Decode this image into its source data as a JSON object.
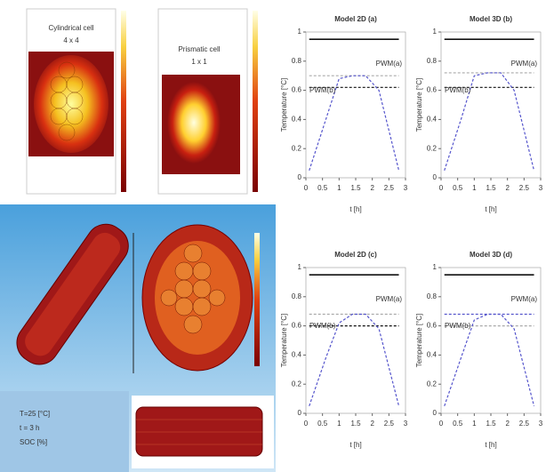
{
  "figure": {
    "heatmaps": [
      {
        "title": "Cylindrical cell",
        "subtitle": "4 x 4"
      },
      {
        "title": "Prismatic cell",
        "subtitle": "1 x 1"
      }
    ],
    "render_labels": [
      "T=25 [°C]",
      "t = 3 h",
      "SOC [%]"
    ]
  },
  "chart_data": [
    {
      "type": "line",
      "title": "Model 2D (a)",
      "xlabel": "t [h]",
      "ylabel": "Temperature [°C]",
      "x": [
        0.1,
        0.6,
        1.0,
        1.4,
        1.8,
        2.2,
        2.8
      ],
      "xlim": [
        0,
        3
      ],
      "xticks": [
        0,
        0.5,
        1,
        1.5,
        2,
        2.5,
        3
      ],
      "ylim": [
        0,
        1
      ],
      "yticks": [
        0,
        0.2,
        0.4,
        0.6,
        0.8,
        1
      ],
      "series": [
        {
          "color": "#111111",
          "dash": false,
          "values": [
            0.95,
            0.95,
            0.95,
            0.95,
            0.95,
            0.95,
            0.95
          ]
        },
        {
          "color": "#aaaaaa",
          "dash": true,
          "values": [
            0.7,
            0.7,
            0.7,
            0.7,
            0.7,
            0.7,
            0.7
          ]
        },
        {
          "color": "#111111",
          "dash": true,
          "values": [
            0.62,
            0.62,
            0.62,
            0.62,
            0.62,
            0.62,
            0.62
          ]
        },
        {
          "color": "#5555cc",
          "dash": true,
          "values": [
            0.05,
            0.4,
            0.68,
            0.7,
            0.7,
            0.6,
            0.05
          ]
        }
      ],
      "annotations": [
        "PWM(b)",
        "PWM(a)"
      ]
    },
    {
      "type": "line",
      "title": "Model 3D (b)",
      "xlabel": "t [h]",
      "ylabel": "Temperature [°C]",
      "x": [
        0.1,
        0.6,
        1.0,
        1.4,
        1.8,
        2.2,
        2.8
      ],
      "xlim": [
        0,
        3
      ],
      "xticks": [
        0,
        0.5,
        1,
        1.5,
        2,
        2.5,
        3
      ],
      "ylim": [
        0,
        1
      ],
      "yticks": [
        0,
        0.2,
        0.4,
        0.6,
        0.8,
        1
      ],
      "series": [
        {
          "color": "#111111",
          "dash": false,
          "values": [
            0.95,
            0.95,
            0.95,
            0.95,
            0.95,
            0.95,
            0.95
          ]
        },
        {
          "color": "#aaaaaa",
          "dash": true,
          "values": [
            0.72,
            0.72,
            0.72,
            0.72,
            0.72,
            0.72,
            0.72
          ]
        },
        {
          "color": "#111111",
          "dash": true,
          "values": [
            0.62,
            0.62,
            0.62,
            0.62,
            0.62,
            0.62,
            0.62
          ]
        },
        {
          "color": "#5555cc",
          "dash": true,
          "values": [
            0.05,
            0.4,
            0.7,
            0.72,
            0.72,
            0.6,
            0.05
          ]
        }
      ],
      "annotations": [
        "PWM(b)",
        "PWM(a)"
      ]
    },
    {
      "type": "line",
      "title": "Model 2D (c)",
      "xlabel": "t [h]",
      "ylabel": "Temperature [°C]",
      "x": [
        0.1,
        0.6,
        1.0,
        1.4,
        1.8,
        2.2,
        2.8
      ],
      "xlim": [
        0,
        3
      ],
      "xticks": [
        0,
        0.5,
        1,
        1.5,
        2,
        2.5,
        3
      ],
      "ylim": [
        0,
        1
      ],
      "yticks": [
        0,
        0.2,
        0.4,
        0.6,
        0.8,
        1
      ],
      "series": [
        {
          "color": "#111111",
          "dash": false,
          "values": [
            0.95,
            0.95,
            0.95,
            0.95,
            0.95,
            0.95,
            0.95
          ]
        },
        {
          "color": "#aaaaaa",
          "dash": true,
          "values": [
            0.68,
            0.68,
            0.68,
            0.68,
            0.68,
            0.68,
            0.68
          ]
        },
        {
          "color": "#111111",
          "dash": true,
          "values": [
            0.6,
            0.6,
            0.6,
            0.6,
            0.6,
            0.6,
            0.6
          ]
        },
        {
          "color": "#5555cc",
          "dash": true,
          "values": [
            0.05,
            0.38,
            0.62,
            0.68,
            0.68,
            0.58,
            0.05
          ]
        }
      ],
      "annotations": [
        "PWM(b)",
        "PWM(a)"
      ]
    },
    {
      "type": "line",
      "title": "Model 3D (d)",
      "xlabel": "t [h]",
      "ylabel": "Temperature [°C]",
      "x": [
        0.1,
        0.6,
        1.0,
        1.4,
        1.8,
        2.2,
        2.8
      ],
      "xlim": [
        0,
        3
      ],
      "xticks": [
        0,
        0.5,
        1,
        1.5,
        2,
        2.5,
        3
      ],
      "ylim": [
        0,
        1
      ],
      "yticks": [
        0,
        0.2,
        0.4,
        0.6,
        0.8,
        1
      ],
      "series": [
        {
          "color": "#111111",
          "dash": false,
          "values": [
            0.95,
            0.95,
            0.95,
            0.95,
            0.95,
            0.95,
            0.95
          ]
        },
        {
          "color": "#5555cc",
          "dash": true,
          "values": [
            0.68,
            0.68,
            0.68,
            0.68,
            0.68,
            0.68,
            0.68
          ]
        },
        {
          "color": "#aaaaaa",
          "dash": true,
          "values": [
            0.6,
            0.6,
            0.6,
            0.6,
            0.6,
            0.6,
            0.6
          ]
        },
        {
          "color": "#5555cc",
          "dash": true,
          "values": [
            0.05,
            0.38,
            0.64,
            0.68,
            0.68,
            0.58,
            0.05
          ]
        }
      ],
      "annotations": [
        "PWM(b)",
        "PWM(a)"
      ]
    }
  ]
}
